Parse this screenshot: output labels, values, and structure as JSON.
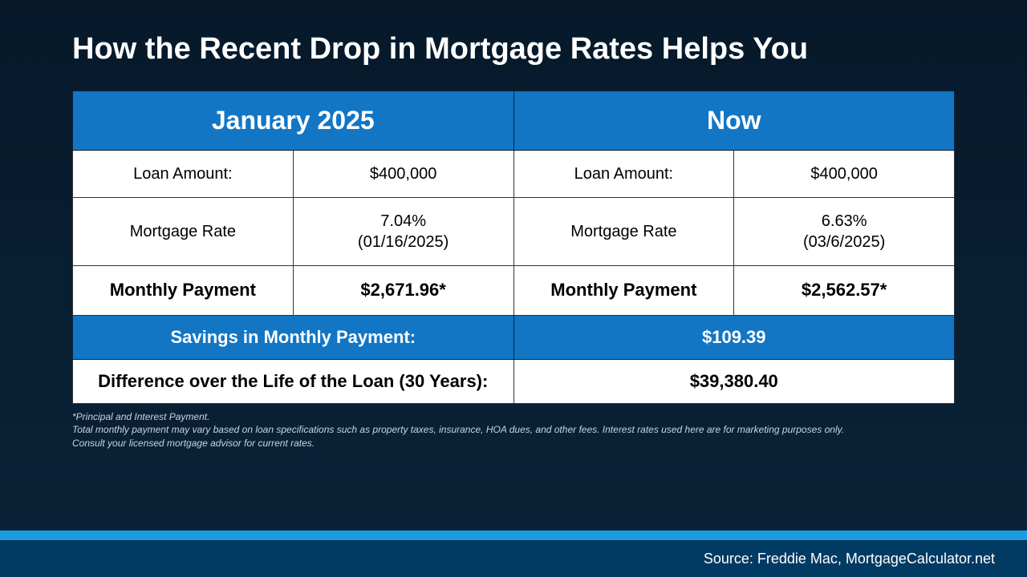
{
  "title": "How the Recent Drop in Mortgage Rates Helps You",
  "colors": {
    "bg_top": "#07192b",
    "bg_bottom": "#0a2338",
    "accent": "#1276c4",
    "accent_light": "#1a9de0",
    "footer": "#013a63",
    "white": "#ffffff",
    "black": "#000000",
    "disclaimer": "#c9d4df"
  },
  "table": {
    "header_left": "January 2025",
    "header_right": "Now",
    "rows": [
      {
        "label_l": "Loan Amount:",
        "val_l": "$400,000",
        "label_r": "Loan Amount:",
        "val_r": "$400,000",
        "bold": false
      },
      {
        "label_l": "Mortgage Rate",
        "val_l": "7.04%\n(01/16/2025)",
        "label_r": "Mortgage Rate",
        "val_r": "6.63%\n(03/6/2025)",
        "bold": false
      },
      {
        "label_l": "Monthly Payment",
        "val_l": "$2,671.96*",
        "label_r": "Monthly Payment",
        "val_r": "$2,562.57*",
        "bold": true
      }
    ],
    "savings_label": "Savings in Monthly Payment:",
    "savings_value": "$109.39",
    "diff_label": "Difference over the Life of the Loan (30 Years):",
    "diff_value": "$39,380.40"
  },
  "disclaimer": {
    "line1": "*Principal and Interest Payment.",
    "line2": "Total monthly payment may vary based on loan specifications such as property taxes, insurance, HOA dues, and other fees. Interest rates used here are for marketing purposes only.",
    "line3": "Consult your licensed mortgage advisor for current rates."
  },
  "source": "Source: Freddie Mac, MortgageCalculator.net"
}
